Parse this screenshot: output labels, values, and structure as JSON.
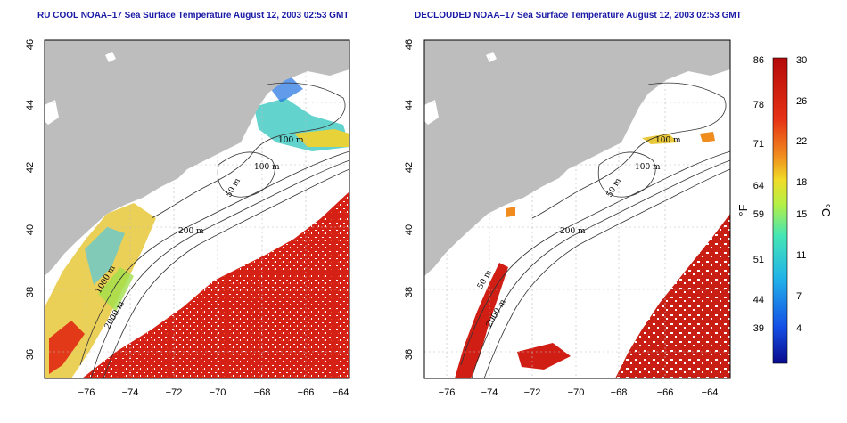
{
  "left_panel": {
    "title": "RU COOL NOAA–17 Sea Surface Temperature August 12, 2003 02:53 GMT"
  },
  "right_panel": {
    "title": "DECLOUDED NOAA–17 Sea Surface Temperature August 12, 2003 02:53 GMT"
  },
  "axes": {
    "lat_ticks": [
      "46",
      "44",
      "42",
      "40",
      "38",
      "36"
    ],
    "lon_ticks": [
      "−76",
      "−74",
      "−72",
      "−70",
      "−68",
      "−66",
      "−64"
    ]
  },
  "contour_labels": {
    "m100a": "100 m",
    "m100b": "100 m",
    "m50": "50 m",
    "m200": "200 m",
    "m1000": "1000 m",
    "m2000": "2000 m",
    "m50b": "50 m"
  },
  "colorbar": {
    "fahrenheit_label": "°F",
    "celsius_label": "°C",
    "fahrenheit_ticks": [
      "86",
      "78",
      "71",
      "64",
      "59",
      "51",
      "44",
      "39"
    ],
    "celsius_ticks": [
      "30",
      "26",
      "22",
      "18",
      "15",
      "11",
      "7",
      "4"
    ],
    "colors": [
      "#0a0a8c",
      "#1450e6",
      "#21b4e8",
      "#47e6b4",
      "#b4f046",
      "#f0dc28",
      "#f08c1e",
      "#e63214",
      "#b40a0a"
    ]
  },
  "colors": {
    "land": "#bdbdbd",
    "no_data": "#ffffff",
    "warm_water": "#d21e14"
  }
}
